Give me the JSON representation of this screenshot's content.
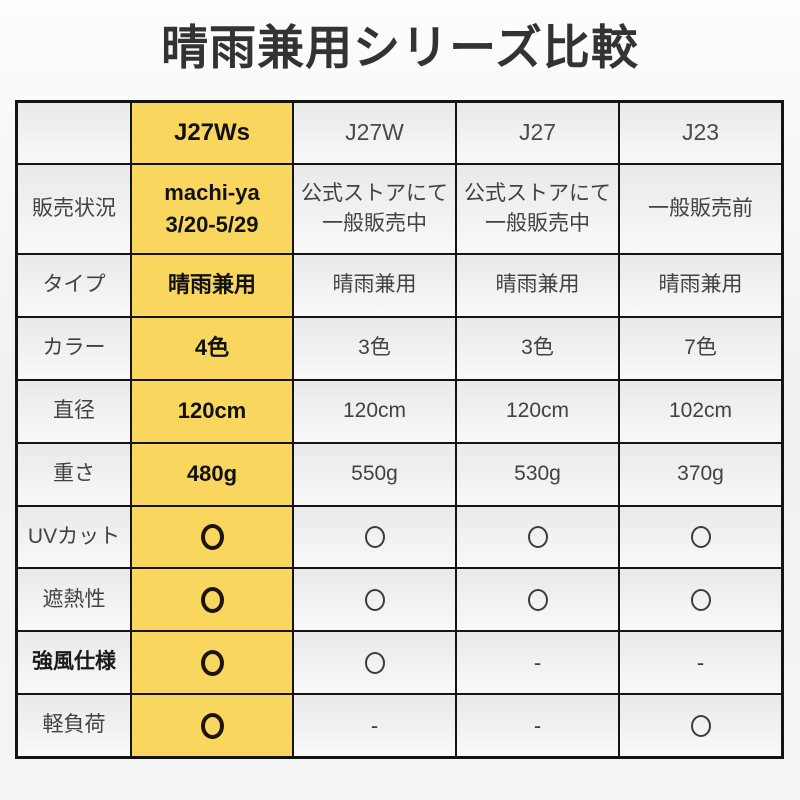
{
  "title": "晴雨兼用シリーズ比較",
  "colors": {
    "highlight_yellow": "#f9d75e",
    "border_black": "#141414",
    "cell_gray": "#eeeeee",
    "text_dark": "#424242",
    "text_black": "#111111"
  },
  "table": {
    "corner_label": "",
    "columns": [
      {
        "label": "J27Ws",
        "highlighted": true
      },
      {
        "label": "J27W",
        "highlighted": false
      },
      {
        "label": "J27",
        "highlighted": false
      },
      {
        "label": "J23",
        "highlighted": false
      }
    ],
    "rows": [
      {
        "label": "販売状況",
        "label_bold": false,
        "cells": [
          {
            "type": "text",
            "bold": true,
            "lines": [
              "machi-ya",
              "3/20-5/29"
            ]
          },
          {
            "type": "text",
            "bold": false,
            "lines": [
              "公式ストアにて",
              "一般販売中"
            ]
          },
          {
            "type": "text",
            "bold": false,
            "lines": [
              "公式ストアにて",
              "一般販売中"
            ]
          },
          {
            "type": "text",
            "bold": false,
            "lines": [
              "一般販売前"
            ]
          }
        ]
      },
      {
        "label": "タイプ",
        "label_bold": false,
        "cells": [
          {
            "type": "text",
            "bold": true,
            "lines": [
              "晴雨兼用"
            ]
          },
          {
            "type": "text",
            "bold": false,
            "lines": [
              "晴雨兼用"
            ]
          },
          {
            "type": "text",
            "bold": false,
            "lines": [
              "晴雨兼用"
            ]
          },
          {
            "type": "text",
            "bold": false,
            "lines": [
              "晴雨兼用"
            ]
          }
        ]
      },
      {
        "label": "カラー",
        "label_bold": false,
        "cells": [
          {
            "type": "text",
            "bold": true,
            "lines": [
              "4色"
            ]
          },
          {
            "type": "text",
            "bold": false,
            "lines": [
              "3色"
            ]
          },
          {
            "type": "text",
            "bold": false,
            "lines": [
              "3色"
            ]
          },
          {
            "type": "text",
            "bold": false,
            "lines": [
              "7色"
            ]
          }
        ]
      },
      {
        "label": "直径",
        "label_bold": false,
        "cells": [
          {
            "type": "text",
            "bold": true,
            "lines": [
              "120cm"
            ]
          },
          {
            "type": "text",
            "bold": false,
            "lines": [
              "120cm"
            ]
          },
          {
            "type": "text",
            "bold": false,
            "lines": [
              "120cm"
            ]
          },
          {
            "type": "text",
            "bold": false,
            "lines": [
              "102cm"
            ]
          }
        ]
      },
      {
        "label": "重さ",
        "label_bold": false,
        "cells": [
          {
            "type": "text",
            "bold": true,
            "lines": [
              "480g"
            ]
          },
          {
            "type": "text",
            "bold": false,
            "lines": [
              "550g"
            ]
          },
          {
            "type": "text",
            "bold": false,
            "lines": [
              "530g"
            ]
          },
          {
            "type": "text",
            "bold": false,
            "lines": [
              "370g"
            ]
          }
        ]
      },
      {
        "label": "UVカット",
        "label_bold": false,
        "cells": [
          {
            "type": "circle"
          },
          {
            "type": "circle"
          },
          {
            "type": "circle"
          },
          {
            "type": "circle"
          }
        ]
      },
      {
        "label": "遮熱性",
        "label_bold": false,
        "cells": [
          {
            "type": "circle"
          },
          {
            "type": "circle"
          },
          {
            "type": "circle"
          },
          {
            "type": "circle"
          }
        ]
      },
      {
        "label": "強風仕様",
        "label_bold": true,
        "cells": [
          {
            "type": "circle"
          },
          {
            "type": "circle"
          },
          {
            "type": "dash"
          },
          {
            "type": "dash"
          }
        ]
      },
      {
        "label": "軽負荷",
        "label_bold": false,
        "cells": [
          {
            "type": "circle"
          },
          {
            "type": "dash"
          },
          {
            "type": "dash"
          },
          {
            "type": "circle"
          }
        ]
      }
    ]
  },
  "marks": {
    "circle": "〇",
    "dash": "-"
  },
  "chart_data": {
    "type": "table",
    "title": "晴雨兼用シリーズ比較",
    "columns": [
      "",
      "J27Ws",
      "J27W",
      "J27",
      "J23"
    ],
    "rows": [
      [
        "販売状況",
        "machi-ya 3/20-5/29",
        "公式ストアにて一般販売中",
        "公式ストアにて一般販売中",
        "一般販売前"
      ],
      [
        "タイプ",
        "晴雨兼用",
        "晴雨兼用",
        "晴雨兼用",
        "晴雨兼用"
      ],
      [
        "カラー",
        "4色",
        "3色",
        "3色",
        "7色"
      ],
      [
        "直径",
        "120cm",
        "120cm",
        "120cm",
        "102cm"
      ],
      [
        "重さ",
        "480g",
        "550g",
        "530g",
        "370g"
      ],
      [
        "UVカット",
        "〇",
        "〇",
        "〇",
        "〇"
      ],
      [
        "遮熱性",
        "〇",
        "〇",
        "〇",
        "〇"
      ],
      [
        "強風仕様",
        "〇",
        "〇",
        "-",
        "-"
      ],
      [
        "軽負荷",
        "〇",
        "-",
        "-",
        "〇"
      ]
    ],
    "highlighted_column": "J27Ws",
    "layout": {
      "grid": true,
      "legend": "none"
    }
  }
}
